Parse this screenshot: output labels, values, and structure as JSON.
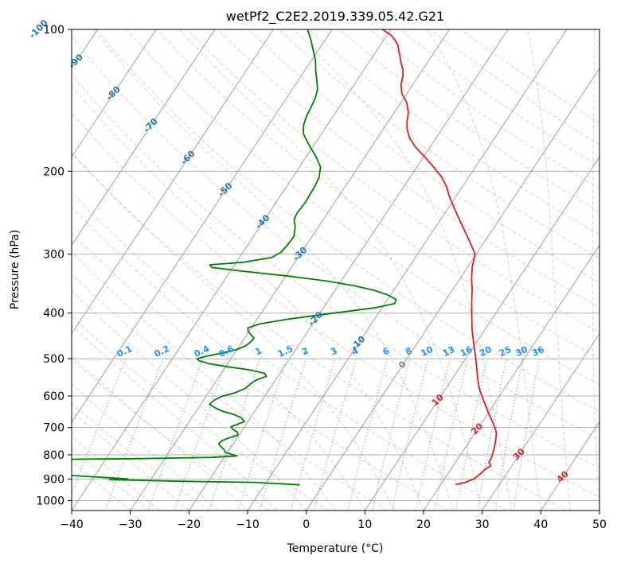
{
  "chart_data": {
    "type": "line",
    "title": "wetPf2_C2E2.2019.339.05.42.G21",
    "xlabel": "Temperature (°C)",
    "ylabel": "Pressure (hPa)",
    "xlim": [
      -40,
      50
    ],
    "ylim": [
      1050,
      100
    ],
    "y_scale": "log",
    "x_ticks": [
      -40,
      -30,
      -20,
      -10,
      0,
      10,
      20,
      30,
      40,
      50
    ],
    "x_tick_labels": [
      "−40",
      "−30",
      "−20",
      "−10",
      "0",
      "10",
      "20",
      "30",
      "40",
      "50"
    ],
    "y_ticks": [
      100,
      200,
      300,
      400,
      500,
      600,
      700,
      800,
      900,
      1000
    ],
    "y_tick_labels": [
      "100",
      "200",
      "300",
      "400",
      "500",
      "600",
      "700",
      "800",
      "900",
      "1000"
    ],
    "grid": true,
    "series": [
      {
        "role": "temperature",
        "color": "#e41a1c",
        "points": [
          [
            22.5,
            925
          ],
          [
            24,
            915
          ],
          [
            25,
            900
          ],
          [
            25.5,
            880
          ],
          [
            25.8,
            860
          ],
          [
            26.4,
            845
          ],
          [
            26.2,
            838
          ],
          [
            25.7,
            830
          ],
          [
            25.6,
            810
          ],
          [
            25.1,
            780
          ],
          [
            24.5,
            750
          ],
          [
            23.7,
            720
          ],
          [
            22.8,
            700
          ],
          [
            21.7,
            680
          ],
          [
            20.5,
            660
          ],
          [
            18.8,
            630
          ],
          [
            17.3,
            605
          ],
          [
            15.8,
            580
          ],
          [
            14.5,
            555
          ],
          [
            12.8,
            520
          ],
          [
            11.2,
            490
          ],
          [
            9.4,
            460
          ],
          [
            7.6,
            430
          ],
          [
            5.9,
            400
          ],
          [
            4.7,
            380
          ],
          [
            3.2,
            355
          ],
          [
            2.1,
            340
          ],
          [
            0.8,
            320
          ],
          [
            -0.2,
            300
          ],
          [
            -2.4,
            283
          ],
          [
            -5.0,
            265
          ],
          [
            -7.3,
            250
          ],
          [
            -9.2,
            238
          ],
          [
            -11.0,
            227
          ],
          [
            -12.8,
            215
          ],
          [
            -14.8,
            205
          ],
          [
            -17.4,
            195
          ],
          [
            -19.9,
            186
          ],
          [
            -22.4,
            178
          ],
          [
            -24.5,
            170
          ],
          [
            -25.9,
            163
          ],
          [
            -26.8,
            157
          ],
          [
            -27.6,
            150
          ],
          [
            -29.0,
            143
          ],
          [
            -30.8,
            137
          ],
          [
            -32.0,
            131
          ],
          [
            -32.6,
            126
          ],
          [
            -33.3,
            122
          ],
          [
            -34.4,
            118
          ],
          [
            -35.4,
            114
          ],
          [
            -36.2,
            111
          ],
          [
            -37.0,
            108
          ],
          [
            -37.8,
            106
          ],
          [
            -39.2,
            103
          ],
          [
            -41.4,
            100
          ]
        ]
      },
      {
        "role": "dewpoint",
        "color": "#008000",
        "points": [
          [
            -4,
            926
          ],
          [
            -12,
            915
          ],
          [
            -25,
            910
          ],
          [
            -33,
            905
          ],
          [
            -37,
            903
          ],
          [
            -34,
            900
          ],
          [
            -37,
            895
          ],
          [
            -44,
            885
          ],
          [
            -52,
            875
          ],
          [
            -57,
            865
          ],
          [
            -68,
            860
          ],
          [
            -80,
            855
          ],
          [
            -88,
            851
          ],
          [
            -80,
            823
          ],
          [
            -60,
            820
          ],
          [
            -35,
            815
          ],
          [
            -22,
            810
          ],
          [
            -18,
            804
          ],
          [
            -20.4,
            790
          ],
          [
            -21,
            778
          ],
          [
            -21.8,
            768
          ],
          [
            -22.5,
            757
          ],
          [
            -22.3,
            748
          ],
          [
            -21.6,
            738
          ],
          [
            -20.2,
            726
          ],
          [
            -20.6,
            716
          ],
          [
            -21.7,
            706
          ],
          [
            -22.3,
            697
          ],
          [
            -21.4,
            688
          ],
          [
            -20.6,
            680
          ],
          [
            -21.5,
            668
          ],
          [
            -23.1,
            657
          ],
          [
            -25.2,
            648
          ],
          [
            -27.1,
            636
          ],
          [
            -28.5,
            625
          ],
          [
            -28.2,
            613
          ],
          [
            -27.3,
            601
          ],
          [
            -25.4,
            590
          ],
          [
            -24.2,
            578
          ],
          [
            -23.8,
            565
          ],
          [
            -23.3,
            555
          ],
          [
            -22.0,
            545
          ],
          [
            -22.6,
            537
          ],
          [
            -25.6,
            528
          ],
          [
            -29.7,
            520
          ],
          [
            -33.3,
            512
          ],
          [
            -35.2,
            505
          ],
          [
            -35.8,
            500
          ],
          [
            -34.5,
            494
          ],
          [
            -32.0,
            486
          ],
          [
            -30.0,
            478
          ],
          [
            -28.9,
            469
          ],
          [
            -28.5,
            460
          ],
          [
            -28.4,
            452
          ],
          [
            -29.3,
            445
          ],
          [
            -30.2,
            437
          ],
          [
            -30.6,
            430
          ],
          [
            -29.1,
            422
          ],
          [
            -24.7,
            412
          ],
          [
            -17.6,
            400
          ],
          [
            -11.3,
            390
          ],
          [
            -8.3,
            382
          ],
          [
            -8.6,
            374
          ],
          [
            -10.5,
            366
          ],
          [
            -13.3,
            358
          ],
          [
            -17.3,
            350
          ],
          [
            -22.5,
            342
          ],
          [
            -29.4,
            334
          ],
          [
            -37.8,
            326
          ],
          [
            -43.6,
            320
          ],
          [
            -44.2,
            316
          ],
          [
            -38.8,
            312
          ],
          [
            -34.5,
            305
          ],
          [
            -33.5,
            297
          ],
          [
            -33.2,
            285
          ],
          [
            -33.1,
            275
          ],
          [
            -34.0,
            262
          ],
          [
            -35.0,
            253
          ],
          [
            -35.2,
            245
          ],
          [
            -35.0,
            233
          ],
          [
            -35.1,
            224
          ],
          [
            -35.2,
            215
          ],
          [
            -35.5,
            206
          ],
          [
            -36.4,
            196
          ],
          [
            -38.4,
            186
          ],
          [
            -40.1,
            179
          ],
          [
            -41.8,
            172
          ],
          [
            -43.2,
            166
          ],
          [
            -44.1,
            159
          ],
          [
            -44.6,
            152
          ],
          [
            -44.8,
            146
          ],
          [
            -45.1,
            140
          ],
          [
            -45.7,
            134
          ],
          [
            -46.9,
            128
          ],
          [
            -48.2,
            122
          ],
          [
            -49.4,
            116
          ],
          [
            -50.8,
            111
          ],
          [
            -52.2,
            106
          ],
          [
            -53.5,
            102
          ],
          [
            -54.2,
            100
          ]
        ]
      }
    ],
    "isotherm_labels": [
      "-100",
      "-90",
      "-80",
      "-70",
      "-60",
      "-50",
      "-40",
      "-30",
      "-20",
      "-10",
      "0",
      "10",
      "20",
      "30",
      "40"
    ],
    "mixing_ratio_labels": [
      "0.1",
      "0.2",
      "0.4",
      "0.6",
      "1",
      "1.5",
      "2",
      "3",
      "4",
      "6",
      "8",
      "10",
      "13",
      "16",
      "20",
      "25",
      "30",
      "36"
    ],
    "colors": {
      "isotherm_label_cold": "#1f77b4",
      "isotherm_label_warm": "#d62728",
      "isotherm_label_zero": "#7f7f7f",
      "mixing_ratio_label": "#1e90ff"
    }
  }
}
